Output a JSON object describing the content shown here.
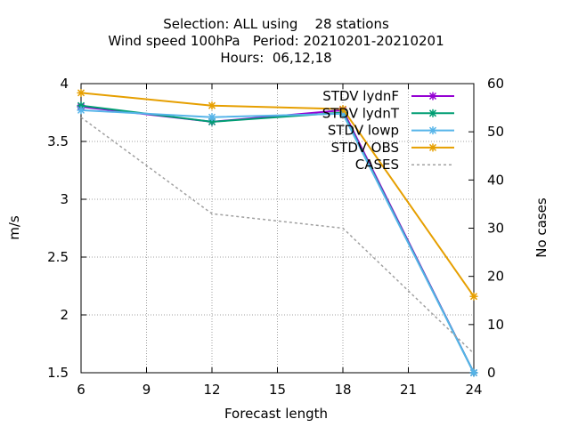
{
  "chart_data": {
    "type": "line",
    "title_lines": [
      "Selection: ALL using    28 stations",
      "Wind speed 100hPa   Period: 20210201-20210201",
      "Hours:  06,12,18"
    ],
    "xlabel": "Forecast length",
    "ylabel": "m/s",
    "y2label": "No cases",
    "x_ticks": [
      6,
      9,
      12,
      15,
      18,
      21,
      24
    ],
    "y_ticks": [
      "1.5",
      "2",
      "2.5",
      "3",
      "3.5",
      "4"
    ],
    "y2_ticks": [
      "0",
      "10",
      "20",
      "30",
      "40",
      "50",
      "60"
    ],
    "xlim": [
      6,
      24
    ],
    "ylim": [
      1.5,
      4
    ],
    "y2lim": [
      0,
      60
    ],
    "grid": true,
    "legend_position": "top-right",
    "x": [
      6,
      12,
      18,
      24
    ],
    "series": [
      {
        "name": "STDV lydnF",
        "axis": "y",
        "values": [
          3.8,
          3.67,
          3.77,
          1.5
        ],
        "color": "#9400d3",
        "marker": "x",
        "style": "solid"
      },
      {
        "name": "STDV lydnT",
        "axis": "y",
        "values": [
          3.81,
          3.67,
          3.75,
          1.5
        ],
        "color": "#009e73",
        "marker": "x",
        "style": "solid"
      },
      {
        "name": "STDV lowp",
        "axis": "y",
        "values": [
          3.77,
          3.71,
          3.74,
          1.5
        ],
        "color": "#56b4e9",
        "marker": "x",
        "style": "solid"
      },
      {
        "name": "STDV OBS",
        "axis": "y",
        "values": [
          3.92,
          3.81,
          3.78,
          2.16
        ],
        "color": "#e69f00",
        "marker": "x",
        "style": "solid"
      },
      {
        "name": "CASES",
        "axis": "y2",
        "values": [
          53,
          33,
          30,
          4
        ],
        "color": "#a0a0a0",
        "marker": "none",
        "style": "dashed"
      }
    ]
  }
}
